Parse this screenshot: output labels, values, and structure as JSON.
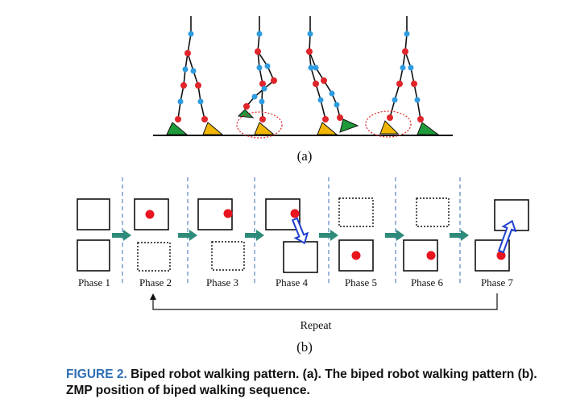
{
  "panel_a": {
    "label": "(a)"
  },
  "panel_b": {
    "label": "(b)",
    "repeat_label": "Repeat",
    "phases": [
      {
        "label": "Phase 1"
      },
      {
        "label": "Phase 2"
      },
      {
        "label": "Phase 3"
      },
      {
        "label": "Phase 4"
      },
      {
        "label": "Phase 5"
      },
      {
        "label": "Phase 6"
      },
      {
        "label": "Phase 7"
      }
    ]
  },
  "caption": {
    "figure_label": "FIGURE 2.",
    "text": "Biped robot walking pattern. (a). The biped robot walking pattern (b). ZMP position of biped walking sequence."
  },
  "colors": {
    "joint_blue": "#2e9be0",
    "joint_red": "#e0252b",
    "foot_green": "#1f9a3a",
    "foot_yellow": "#f2b705",
    "arrow_teal": "#2e8b7a",
    "zmp_arrow_blue": "#1f3fcf",
    "dash_blue": "#6f97c8",
    "zmp_dot": "#e8141e"
  }
}
